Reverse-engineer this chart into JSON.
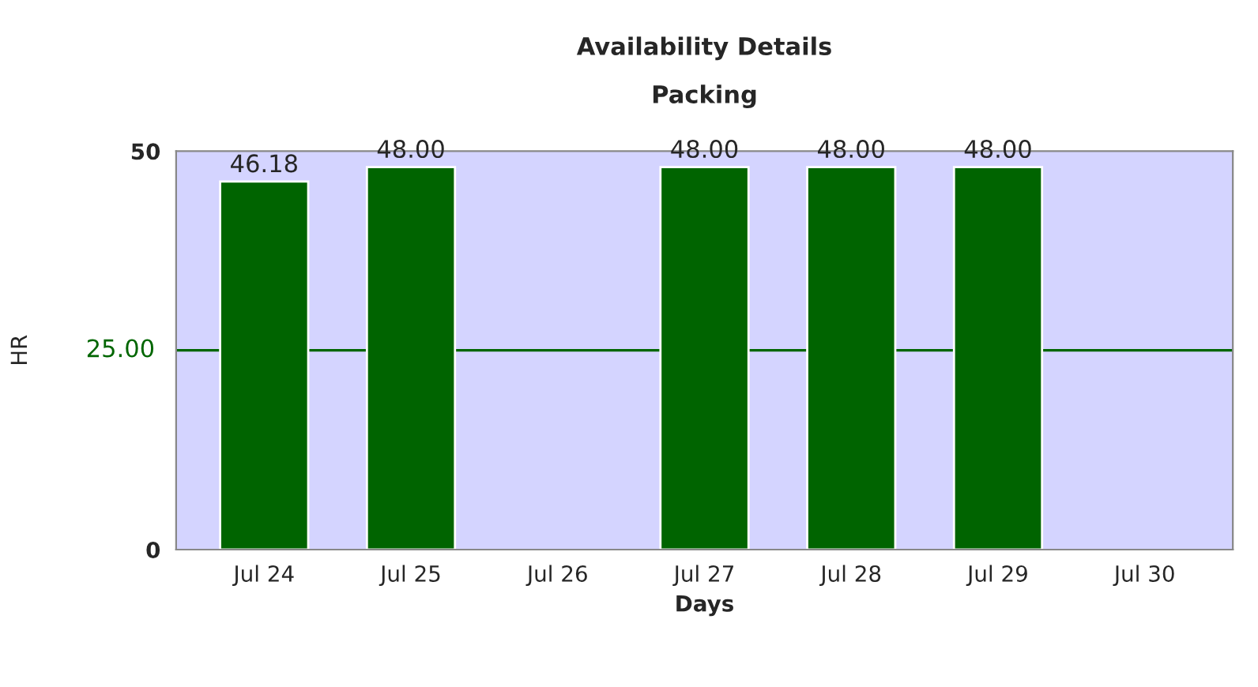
{
  "chart_data": {
    "type": "bar",
    "title": "Availability Details",
    "subtitle": "Packing",
    "xlabel": "Days",
    "ylabel": "HR",
    "categories": [
      "Jul 24",
      "Jul 25",
      "Jul 26",
      "Jul 27",
      "Jul 28",
      "Jul 29",
      "Jul 30"
    ],
    "values": [
      46.18,
      48,
      null,
      48,
      48,
      48,
      null
    ],
    "value_labels": [
      "46.18",
      "48.00",
      null,
      "48.00",
      "48.00",
      "48.00",
      null
    ],
    "color": "#006400",
    "ylim": [
      0,
      50
    ],
    "yticks": [
      0,
      50
    ],
    "ref_lines": [
      {
        "axis": "y",
        "value": 25,
        "label": "25.00",
        "color": "#006600"
      }
    ],
    "grid": false
  }
}
